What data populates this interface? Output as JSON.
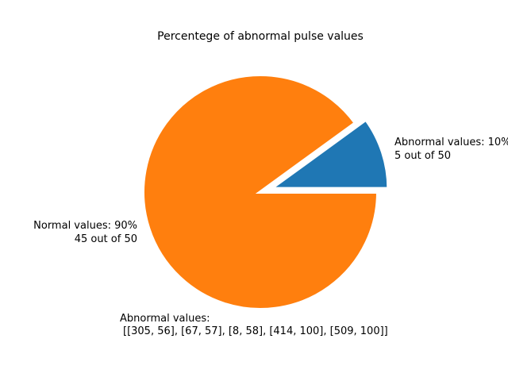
{
  "chart_data": {
    "type": "pie",
    "title": "Percentege of abnormal pulse values",
    "slices": [
      {
        "name": "Abnormal values",
        "value": 10,
        "count": 5,
        "label_line1": "Abnormal values: 10%",
        "label_line2": "5 out of 50",
        "color": "#1f77b4",
        "exploded": true
      },
      {
        "name": "Normal values",
        "value": 90,
        "count": 45,
        "label_line1": "Normal values: 90%",
        "label_line2": "45 out of 50",
        "color": "#ff7f0e",
        "exploded": false
      }
    ],
    "annotation": {
      "line1": "Abnormal values:",
      "line2": "[[305, 56], [67, 57], [8, 58], [414, 100], [509, 100]]"
    }
  }
}
